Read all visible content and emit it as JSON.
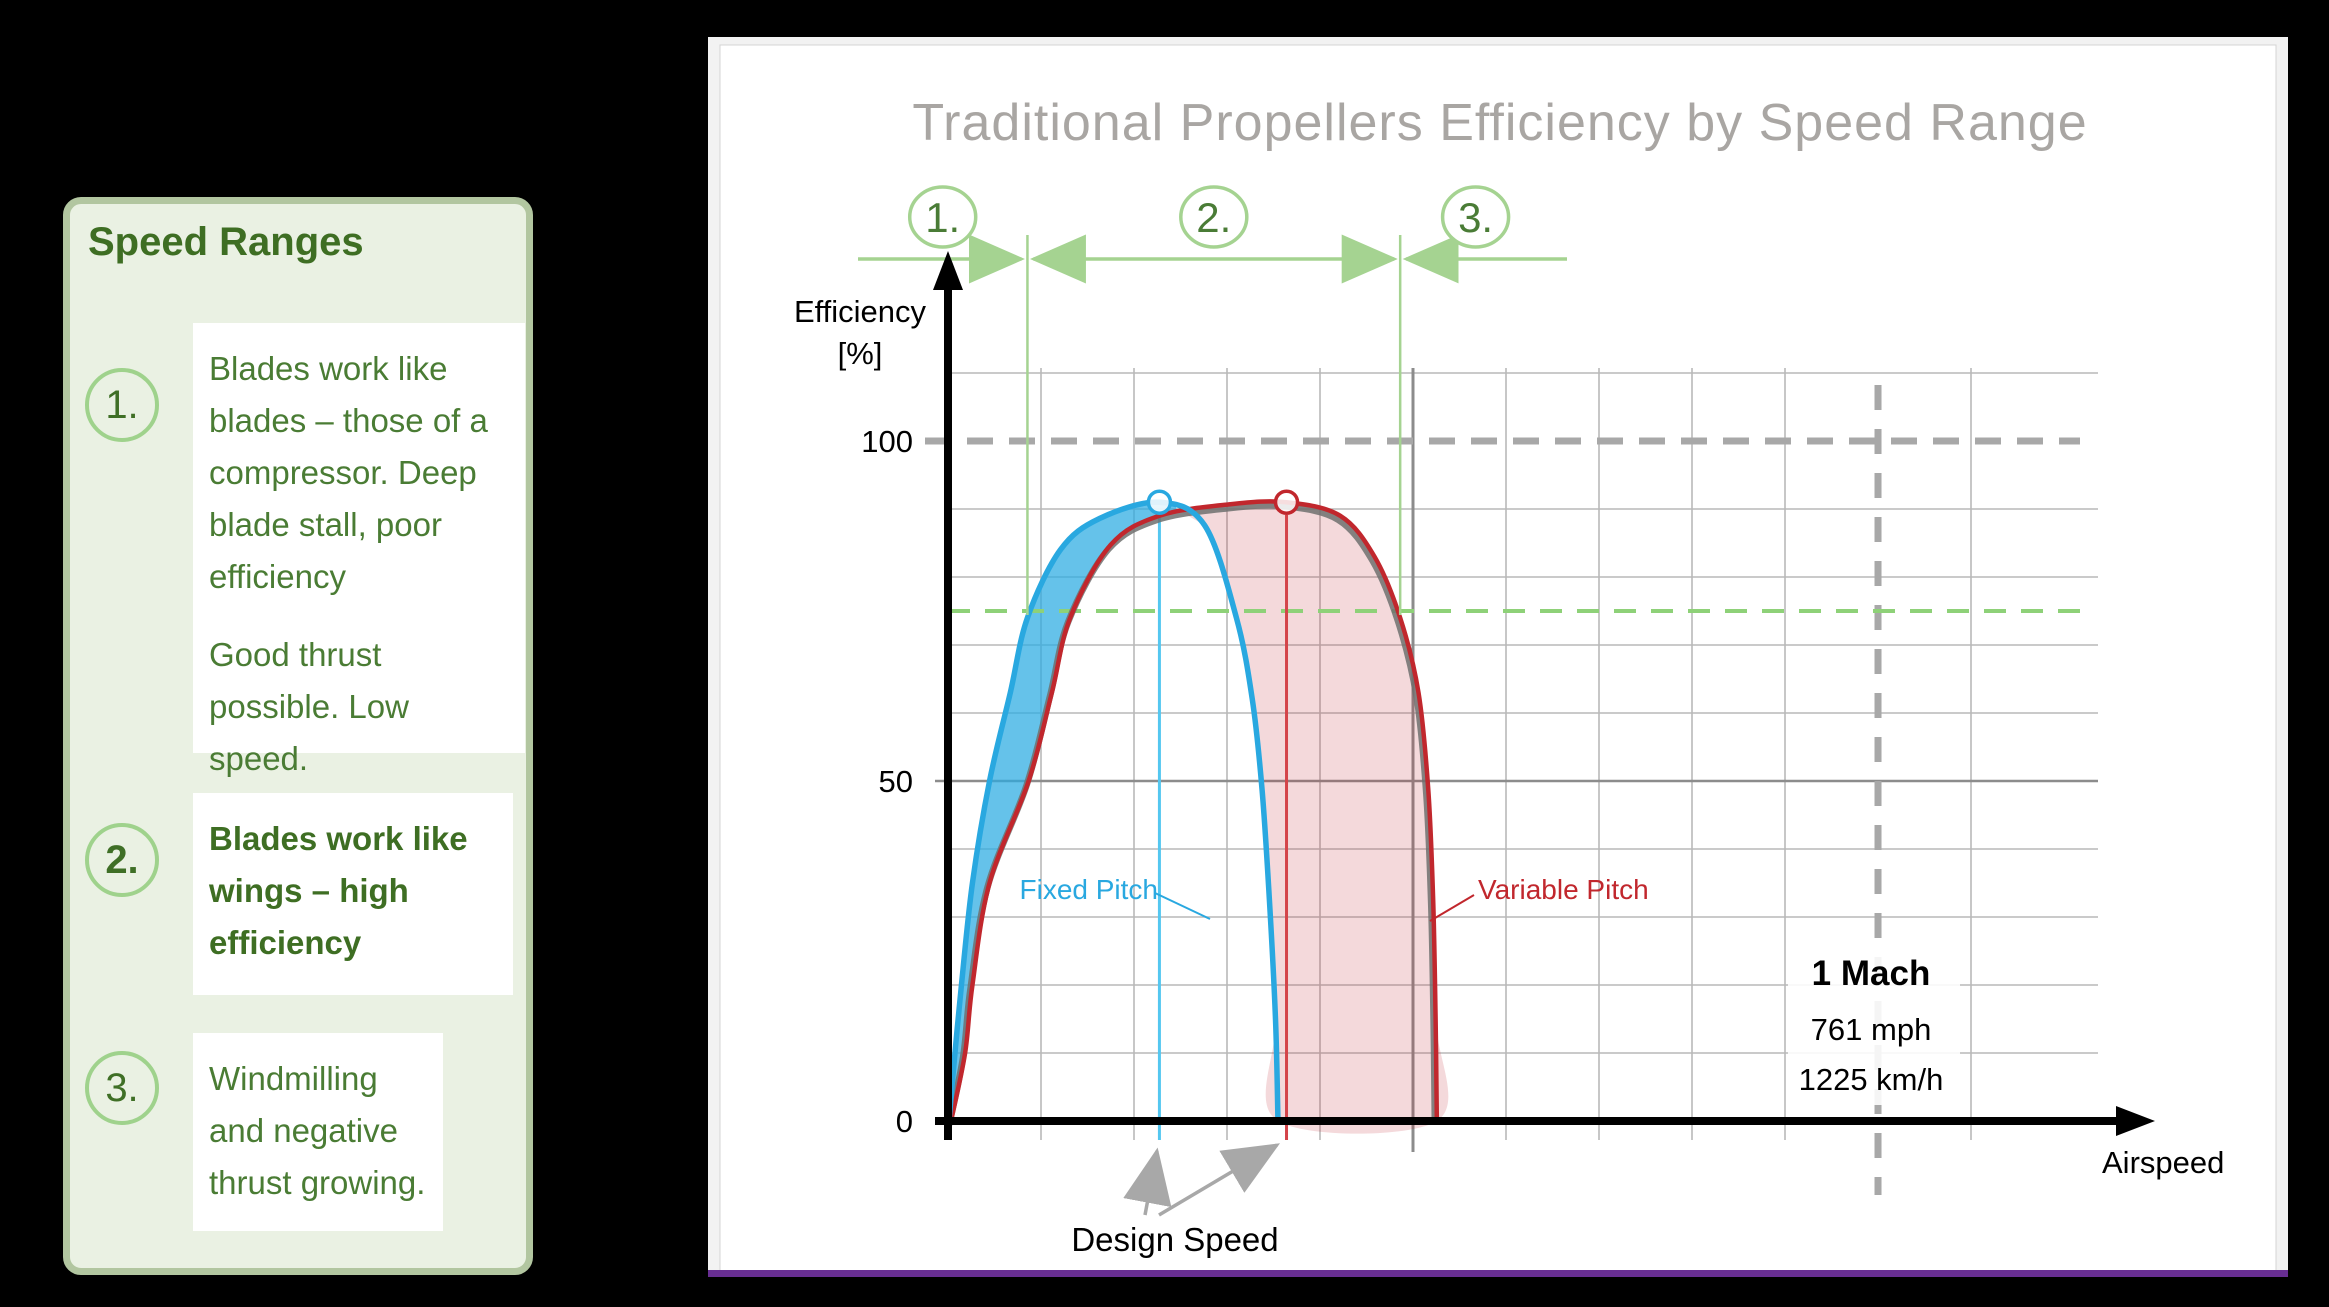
{
  "sidebar": {
    "title": "Speed Ranges",
    "items": [
      {
        "num": "1.",
        "paragraphs": [
          "Blades work like blades – those of a compressor. Deep blade stall, poor efficiency",
          "Good thrust possible. Low speed."
        ],
        "bold": false
      },
      {
        "num": "2.",
        "paragraphs": [
          "Blades work like wings – high efficiency"
        ],
        "bold": true
      },
      {
        "num": "3.",
        "paragraphs": [
          "Windmilling and negative thrust growing."
        ],
        "bold": false
      }
    ]
  },
  "chart": {
    "title": "Traditional Propellers Efficiency by Speed Range",
    "y_axis_label_1": "Efficiency",
    "y_axis_label_2": "[%]",
    "x_axis_label": "Airspeed",
    "tick_100": "100",
    "tick_50": "50",
    "tick_0": "0",
    "fixed_pitch_label": "Fixed Pitch",
    "variable_pitch_label": "Variable Pitch",
    "design_speed_label": "Design Speed",
    "mach_title": "1 Mach",
    "mach_mph": "761 mph",
    "mach_kmh": "1225 km/h",
    "region_labels": [
      "1.",
      "2.",
      "3."
    ]
  },
  "colors": {
    "fixed_pitch": "#29a8e0",
    "variable_pitch": "#c1272d",
    "curve_shadow": "#6f706e",
    "green_annotation": "#a5d391",
    "green_text": "#4a7c36",
    "green_dash": "#8ed178",
    "grid": "#b9b9b9",
    "grid_dark": "#8c8c8c",
    "ref_dash": "#a8a8a8",
    "title_grey": "#a9a6a3",
    "purple_edge": "#682e92",
    "arrow_grey": "#a8a8a8"
  },
  "chart_data": {
    "type": "line",
    "title": "Traditional Propellers Efficiency by Speed Range",
    "xlabel": "Airspeed",
    "ylabel": "Efficiency [%]",
    "x_unit": "mph (estimated, 1 Mach = 761 mph)",
    "ylim": [
      0,
      110
    ],
    "yticks": [
      0,
      50,
      100
    ],
    "grid": true,
    "reference_lines": {
      "horizontal_100_pct": 100,
      "horizontal_green_pct": 75,
      "vertical_mach1_mph": 761,
      "mach1_labels": [
        "1 Mach",
        "761 mph",
        "1225 km/h"
      ]
    },
    "regions": [
      {
        "label": "1.",
        "from_mph": 0,
        "to_mph": 65,
        "meaning": "Blades work like blades – compressor; deep blade stall, poor efficiency; good thrust possible, low speed"
      },
      {
        "label": "2.",
        "from_mph": 65,
        "to_mph": 370,
        "meaning": "Blades work like wings – high efficiency"
      },
      {
        "label": "3.",
        "from_mph": 370,
        "to_mph": 505,
        "meaning": "Windmilling and negative thrust growing"
      }
    ],
    "series": [
      {
        "name": "Fixed Pitch",
        "design_speed_mph": 173,
        "peak": [
          173,
          91
        ],
        "points": [
          [
            0.8,
            0
          ],
          [
            5.7,
            10
          ],
          [
            11,
            20
          ],
          [
            20,
            35
          ],
          [
            34,
            50
          ],
          [
            51,
            63
          ],
          [
            65,
            74
          ],
          [
            92,
            84
          ],
          [
            124,
            88.6
          ],
          [
            173,
            91
          ],
          [
            210,
            87.6
          ],
          [
            236,
            74
          ],
          [
            249,
            62
          ],
          [
            257,
            48.7
          ],
          [
            263,
            32.5
          ],
          [
            268,
            14.9
          ],
          [
            270,
            0
          ]
        ]
      },
      {
        "name": "Variable Pitch",
        "design_speed_mph": 277,
        "peak": [
          277,
          91
        ],
        "points": [
          [
            2.5,
            0
          ],
          [
            14,
            10
          ],
          [
            20,
            20
          ],
          [
            34,
            35
          ],
          [
            66,
            50
          ],
          [
            85,
            63
          ],
          [
            100,
            74
          ],
          [
            133,
            84.7
          ],
          [
            173,
            89
          ],
          [
            231,
            90.7
          ],
          [
            277,
            91
          ],
          [
            321,
            89
          ],
          [
            349,
            83
          ],
          [
            370,
            74
          ],
          [
            385,
            63
          ],
          [
            393,
            48.7
          ],
          [
            397,
            32.5
          ],
          [
            399,
            14.9
          ],
          [
            400,
            0
          ]
        ]
      }
    ]
  }
}
